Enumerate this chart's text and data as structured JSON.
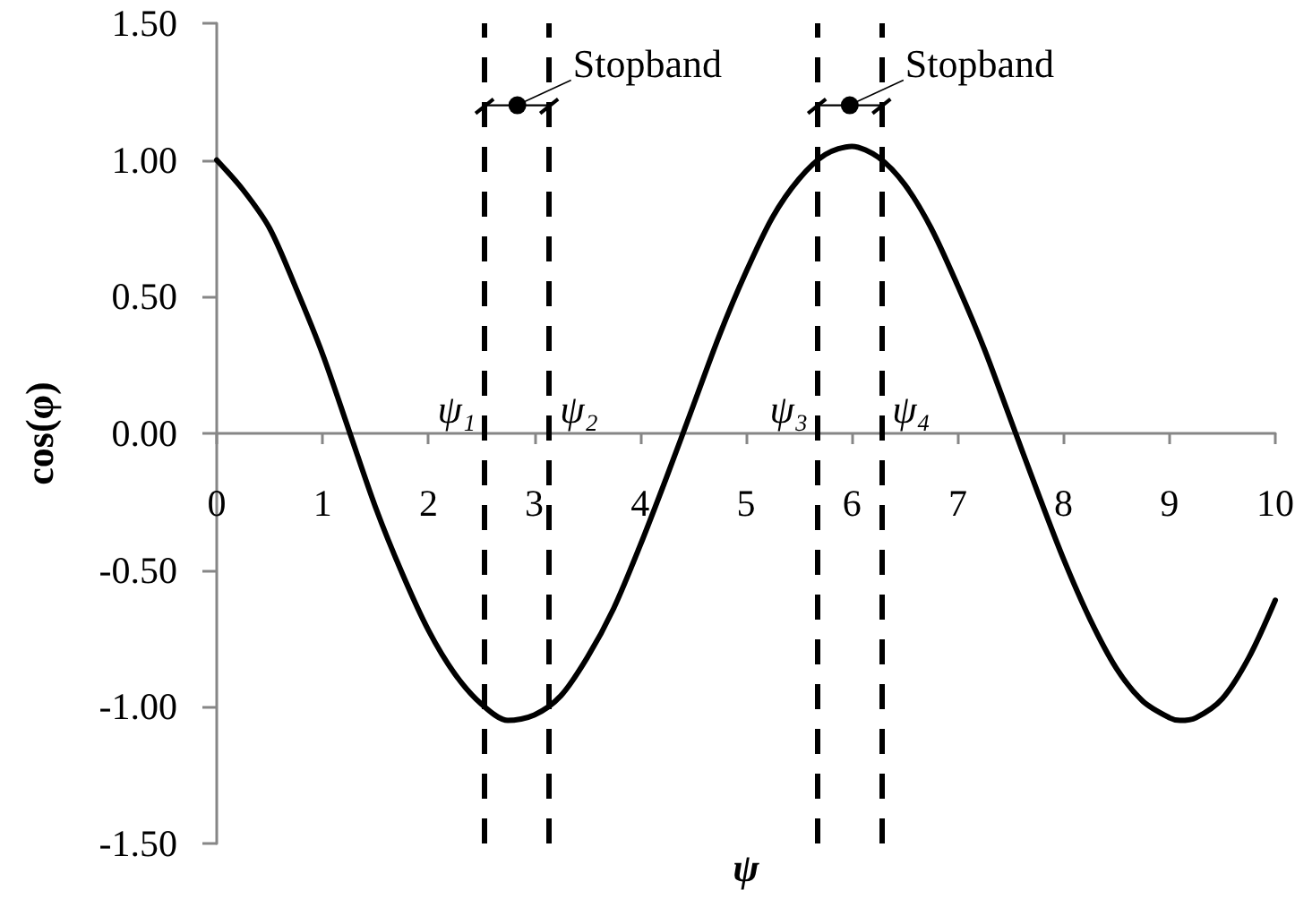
{
  "chart_data": {
    "type": "line",
    "xlabel": "ψ",
    "ylabel": "cos(φ)",
    "x": [
      0,
      0.25,
      0.5,
      0.75,
      1,
      1.25,
      1.5,
      1.75,
      2,
      2.25,
      2.5,
      2.75,
      3,
      3.25,
      3.5,
      3.75,
      4,
      4.25,
      4.5,
      4.75,
      5,
      5.25,
      5.5,
      5.75,
      6,
      6.25,
      6.5,
      6.75,
      7,
      7.25,
      7.5,
      7.75,
      8,
      8.25,
      8.5,
      8.75,
      9,
      9.1,
      9.25,
      9.5,
      9.75,
      10
    ],
    "series": [
      {
        "color": "#000000",
        "values": [
          1.0,
          0.89,
          0.75,
          0.53,
          0.29,
          0.01,
          -0.27,
          -0.51,
          -0.72,
          -0.88,
          -0.99,
          -1.05,
          -1.03,
          -0.96,
          -0.82,
          -0.64,
          -0.41,
          -0.16,
          0.1,
          0.36,
          0.59,
          0.79,
          0.93,
          1.02,
          1.05,
          1.01,
          0.91,
          0.75,
          0.54,
          0.31,
          0.05,
          -0.21,
          -0.46,
          -0.68,
          -0.86,
          -0.98,
          -1.04,
          -1.05,
          -1.04,
          -0.97,
          -0.82,
          -0.61
        ]
      }
    ],
    "xlim": [
      0,
      10
    ],
    "xticks": [
      0,
      1,
      2,
      3,
      4,
      5,
      6,
      7,
      8,
      9,
      10
    ],
    "ylim": [
      -1.5,
      1.5
    ],
    "yticks": [
      {
        "value": -1.5,
        "label": "-1.50"
      },
      {
        "value": -1,
        "label": "-1.00"
      },
      {
        "value": -0.5,
        "label": "-0.50"
      },
      {
        "value": 0,
        "label": "0.00"
      },
      {
        "value": 0.5,
        "label": "0.50"
      },
      {
        "value": 1,
        "label": "1.00"
      },
      {
        "value": 1.5,
        "label": "1.50"
      }
    ],
    "marker": "none",
    "line_style": "solid",
    "ref_lines": [
      {
        "axis": "x",
        "value": 2.53,
        "label": "ψ₁",
        "color": "#000000",
        "line_style": "dashed"
      },
      {
        "axis": "x",
        "value": 3.14,
        "label": "ψ₂",
        "color": "#000000",
        "line_style": "dashed"
      },
      {
        "axis": "x",
        "value": 5.67,
        "label": "ψ₃",
        "color": "#000000",
        "line_style": "dashed"
      },
      {
        "axis": "x",
        "value": 6.28,
        "label": "ψ₄",
        "color": "#000000",
        "line_style": "dashed"
      }
    ],
    "annotations": [
      {
        "text": "Stopband",
        "x": 2.84,
        "y": 1.2
      },
      {
        "text": "Stopband",
        "x": 5.98,
        "y": 1.2
      }
    ]
  }
}
